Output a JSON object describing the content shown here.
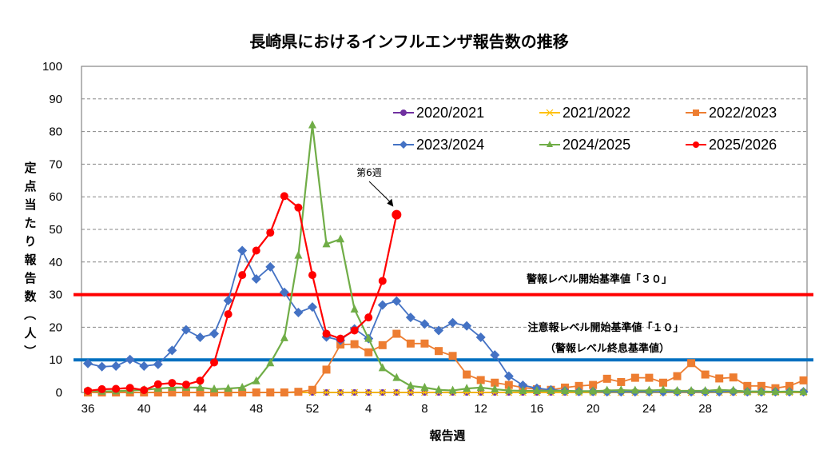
{
  "chart_data": {
    "type": "line",
    "title": "長崎県におけるインフルエンザ報告数の推移",
    "xlabel": "報告週",
    "ylabel": "定点当たり報告数（人）",
    "ylim": [
      0,
      100
    ],
    "yticks": [
      0,
      10,
      20,
      30,
      40,
      50,
      60,
      70,
      80,
      90,
      100
    ],
    "grid": true,
    "legend_position": "top-right",
    "x": [
      36,
      37,
      38,
      39,
      40,
      41,
      42,
      43,
      44,
      45,
      46,
      47,
      48,
      49,
      50,
      51,
      52,
      1,
      2,
      3,
      4,
      5,
      6,
      7,
      8,
      9,
      10,
      11,
      12,
      13,
      14,
      15,
      16,
      17,
      18,
      19,
      20,
      21,
      22,
      23,
      24,
      25,
      26,
      27,
      28,
      29,
      30,
      31,
      32,
      33,
      34,
      35
    ],
    "xtick_labels": [
      "36",
      "40",
      "44",
      "48",
      "52",
      "4",
      "8",
      "12",
      "16",
      "20",
      "24",
      "28",
      "32"
    ],
    "series": [
      {
        "name": "2020/2021",
        "color": "#7030a0",
        "marker": "circle",
        "values": [
          0,
          0,
          0,
          0,
          0,
          0,
          0,
          0,
          0,
          0,
          0,
          0,
          0,
          0,
          0,
          0,
          0,
          0,
          0,
          0,
          0,
          0,
          0,
          0,
          0,
          0,
          0,
          0,
          0,
          0,
          0,
          0,
          0,
          0,
          0,
          0,
          0,
          0,
          0,
          0,
          0,
          0,
          0,
          0,
          0,
          0,
          0,
          0,
          0,
          0,
          0,
          0
        ]
      },
      {
        "name": "2021/2022",
        "color": "#ffc000",
        "marker": "x",
        "values": [
          0,
          0,
          0,
          0,
          0,
          0,
          0,
          0,
          0,
          0,
          0,
          0,
          0,
          0,
          0,
          0,
          0,
          0,
          0,
          0,
          0,
          0,
          0,
          0,
          0,
          0,
          0,
          0,
          0,
          0,
          0,
          0,
          0,
          0,
          0,
          0,
          0,
          0,
          0,
          0,
          0,
          0,
          0,
          0,
          0,
          0,
          0,
          0,
          0,
          0,
          0,
          0
        ]
      },
      {
        "name": "2022/2023",
        "color": "#ed7d31",
        "marker": "square",
        "values": [
          0,
          0,
          0,
          0,
          0,
          0,
          0,
          0,
          0,
          0,
          0,
          0,
          0,
          0,
          0,
          0.2,
          0.8,
          7,
          14.7,
          14.8,
          12.3,
          14.5,
          18,
          15,
          15,
          12.7,
          11.2,
          5.5,
          3.8,
          3,
          2.3,
          1.5,
          1,
          0.8,
          1.5,
          2,
          2.3,
          4.2,
          3.2,
          4.5,
          4.5,
          3,
          5,
          9,
          5.5,
          4.3,
          4.6,
          2,
          2,
          1.3,
          2,
          3.7
        ]
      },
      {
        "name": "2023/2024",
        "color": "#4472c4",
        "marker": "diamond",
        "values": [
          8.9,
          7.9,
          8.1,
          10.1,
          8.1,
          8.6,
          12.9,
          19.2,
          16.9,
          18,
          28.2,
          43.5,
          34.8,
          38.5,
          30.7,
          24.5,
          26.2,
          17,
          16,
          19.5,
          16.5,
          26.8,
          28,
          23,
          21,
          19,
          21.4,
          20.4,
          16.9,
          11.5,
          5,
          2.2,
          1.3,
          0.8,
          0.5,
          0.3,
          0.3,
          0.2,
          0.2,
          0.2,
          0.2,
          0.2,
          0.2,
          0.2,
          0.2,
          0.2,
          0.3,
          0.2,
          0.2,
          0.2,
          0.2,
          0.2
        ]
      },
      {
        "name": "2024/2025",
        "color": "#70ad47",
        "marker": "triangle",
        "values": [
          0.5,
          0.3,
          0.4,
          0.6,
          0.8,
          1.2,
          1.5,
          1.5,
          1.5,
          1,
          1.2,
          1.5,
          3.5,
          9,
          16.7,
          42,
          82,
          45.5,
          47,
          25.5,
          16.5,
          7.5,
          4.5,
          2,
          1.5,
          0.8,
          0.6,
          1.2,
          1.5,
          1,
          0.6,
          0.5,
          0.5,
          0.5,
          0.5,
          0.4,
          0.4,
          0.6,
          0.7,
          0.6,
          0.6,
          0.8,
          0.5,
          0.5,
          0.5,
          0.8,
          0.6,
          0.3,
          0.3,
          0.2,
          0.3,
          0.2
        ]
      },
      {
        "name": "2025/2026",
        "color": "#ff0000",
        "marker": "circle",
        "values": [
          0.5,
          1,
          1.1,
          1.4,
          0.7,
          2.5,
          2.9,
          2.4,
          3.6,
          9.2,
          24,
          36,
          43.5,
          49,
          60.2,
          56.7,
          36,
          18,
          16.5,
          19,
          23,
          34.2,
          54.5
        ]
      }
    ],
    "reference_lines": [
      {
        "value": 30,
        "color": "#ff0000",
        "label": "警報レベル開始基準値「３０」"
      },
      {
        "value": 10,
        "color": "#0070c0",
        "label": "注意報レベル開始基準値「１０」",
        "sublabel": "（警報レベル終息基準値）"
      }
    ],
    "annotations": [
      {
        "text": "第6週",
        "target_series": "2025/2026",
        "target_x": 6
      }
    ]
  }
}
